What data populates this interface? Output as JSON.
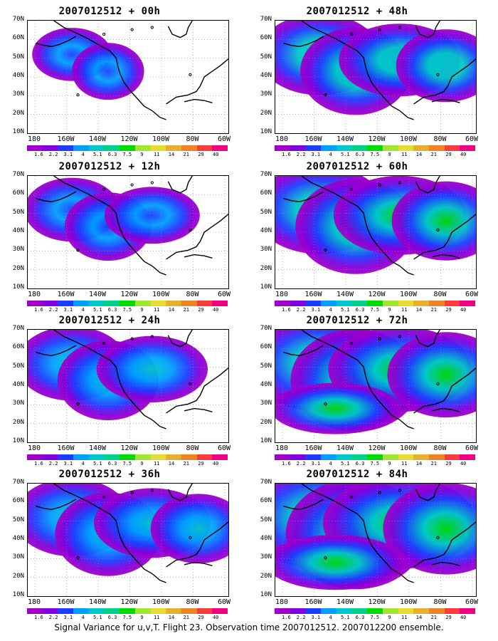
{
  "figure": {
    "caption": "Signal Variance for u,v,T. Flight 23. Observation time 2007012512. 2007012200 ensemble."
  },
  "axes": {
    "lat_labels": [
      "70N",
      "60N",
      "50N",
      "40N",
      "30N",
      "20N",
      "10N"
    ],
    "lon_labels": [
      "180",
      "160W",
      "140W",
      "120W",
      "100W",
      "80W",
      "60W"
    ],
    "lon_range": [
      170,
      300
    ],
    "lat_range": [
      10,
      70
    ],
    "grid": "dotted"
  },
  "colorbar": {
    "labels": [
      "1.6",
      "2.2",
      "3.1",
      "4",
      "5.1",
      "6.3",
      "7.5",
      "9",
      "11",
      "14",
      "21",
      "29",
      "40"
    ],
    "colors": [
      "#a000c8",
      "#8200dc",
      "#1e3cff",
      "#00a0ff",
      "#00c8c8",
      "#00d28c",
      "#00dc00",
      "#a0e632",
      "#e6dc32",
      "#e6af2d",
      "#f08228",
      "#fa3c3c",
      "#f00082"
    ]
  },
  "panels": [
    {
      "title": "2007012512 + 00h",
      "intensity": 0.15
    },
    {
      "title": "2007012512 + 48h",
      "intensity": 0.55
    },
    {
      "title": "2007012512 + 12h",
      "intensity": 0.3
    },
    {
      "title": "2007012512 + 60h",
      "intensity": 0.65
    },
    {
      "title": "2007012512 + 24h",
      "intensity": 0.45
    },
    {
      "title": "2007012512 + 72h",
      "intensity": 0.75
    },
    {
      "title": "2007012512 + 36h",
      "intensity": 0.5
    },
    {
      "title": "2007012512 + 84h",
      "intensity": 0.85
    }
  ]
}
